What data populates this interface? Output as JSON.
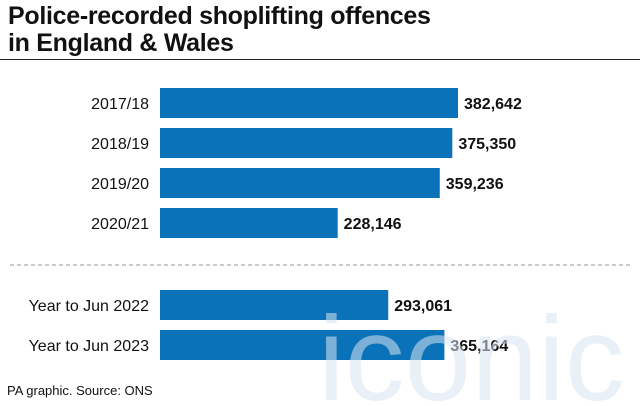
{
  "title_line1": "Police-recorded shoplifting offences",
  "title_line2": "in England & Wales",
  "source": "PA graphic. Source: ONS",
  "watermark": "iconic",
  "bar_color": "#0a72b8",
  "chart_data": {
    "type": "bar",
    "orientation": "horizontal",
    "categories": [
      "2017/18",
      "2018/19",
      "2019/20",
      "2020/21",
      "Year to Jun 2022",
      "Year to Jun 2023"
    ],
    "values": [
      382642,
      375350,
      359236,
      228146,
      293061,
      365164
    ],
    "value_labels": [
      "382,642",
      "375,350",
      "359,236",
      "228,146",
      "293,061",
      "365,164"
    ],
    "title": "Police-recorded shoplifting offences in England & Wales",
    "xlabel": "",
    "ylabel": "",
    "grid": false,
    "separator_after": 4
  }
}
